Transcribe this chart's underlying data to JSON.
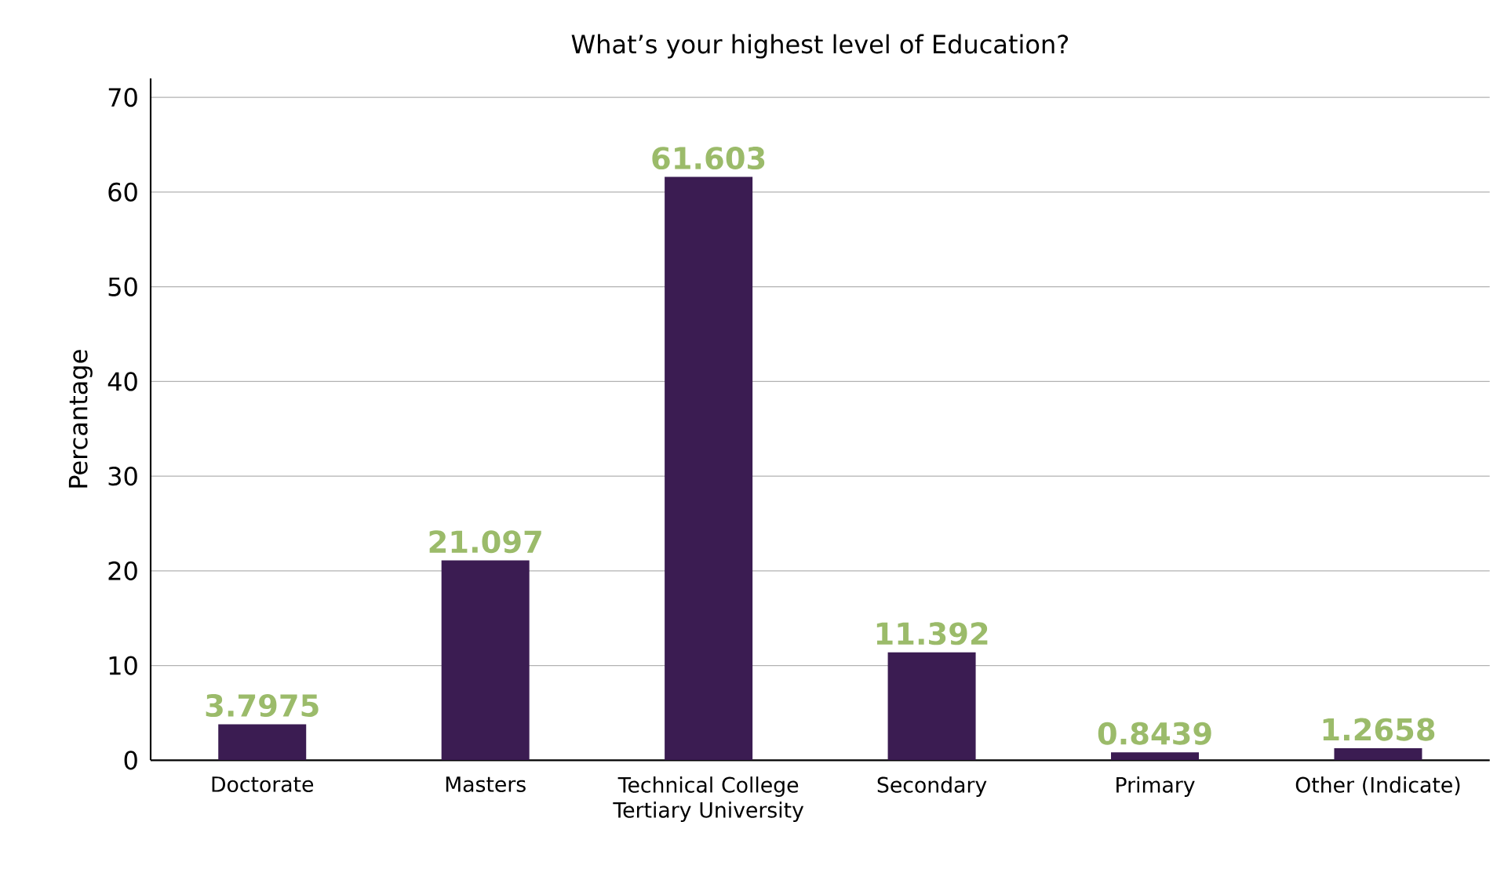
{
  "chart_data": {
    "type": "bar",
    "title": "What’s your highest level of Education?",
    "ylabel": "Percantage",
    "categories": [
      "Doctorate",
      "Masters",
      "Technical College Tertiary University",
      "Secondary",
      "Primary",
      "Other (Indicate)"
    ],
    "values": [
      3.7975,
      21.097,
      61.603,
      11.392,
      0.8439,
      1.2658
    ],
    "color": "#3b1c52",
    "ylim": [
      0,
      72
    ],
    "yticks": [
      0,
      10,
      20,
      30,
      40,
      50,
      60,
      70
    ],
    "grid": "y",
    "data_labels": true
  }
}
